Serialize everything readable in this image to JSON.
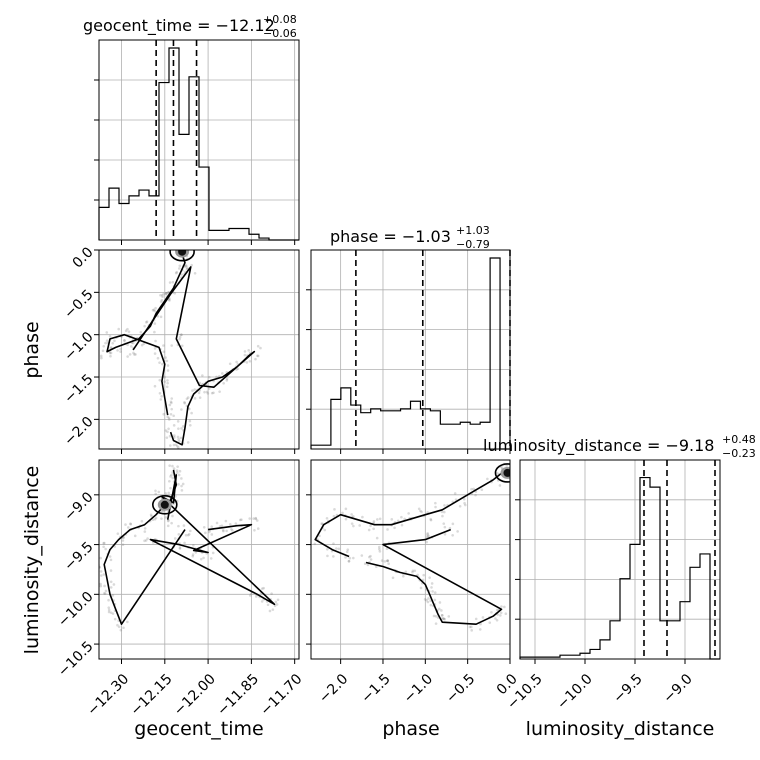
{
  "chart_data": {
    "type": "corner",
    "parameters": [
      {
        "name": "geocent_time",
        "xlabel": "geocent_time",
        "ylabel": "",
        "range": [
          -12.378,
          -11.685
        ],
        "ticks": [
          -12.3,
          -12.15,
          -12.0,
          -11.85,
          -11.7
        ],
        "tick_labels": [
          "−12.30",
          "−12.15",
          "−12.00",
          "−11.85",
          "−11.70"
        ],
        "title": {
          "prefix": "geocent_time = −12.12",
          "plus": "+0.08",
          "minus": "−0.06"
        },
        "median": -12.12,
        "quantiles": [
          -12.18,
          -12.12,
          -12.04
        ],
        "histogram": [
          0.17,
          0.27,
          0.19,
          0.23,
          0.26,
          0.23,
          0.82,
          1.0,
          0.55,
          0.85,
          0.38,
          0.05,
          0.05,
          0.06,
          0.06,
          0.03,
          0.01,
          0.0,
          0.0,
          0.0
        ]
      },
      {
        "name": "phase",
        "xlabel": "phase",
        "ylabel": "phase",
        "range": [
          -2.35,
          0.0
        ],
        "ticks": [
          -2.0,
          -1.5,
          -1.0,
          -0.5,
          0.0
        ],
        "tick_labels": [
          "−2.0",
          "−1.5",
          "−1.0",
          "−0.5",
          "0.0"
        ],
        "title": {
          "prefix": "phase = −1.03",
          "plus": "+1.03",
          "minus": "−0.79"
        },
        "median": -1.03,
        "quantiles": [
          -1.82,
          -1.03,
          0.0
        ],
        "histogram": [
          0.02,
          0.02,
          0.26,
          0.32,
          0.23,
          0.19,
          0.21,
          0.2,
          0.2,
          0.21,
          0.25,
          0.21,
          0.2,
          0.13,
          0.13,
          0.14,
          0.13,
          0.14,
          1.0,
          0.0
        ]
      },
      {
        "name": "luminosity_distance",
        "xlabel": "luminosity_distance",
        "ylabel": "luminosity_distance",
        "range": [
          -10.65,
          -8.65
        ],
        "ticks": [
          -10.5,
          -10.0,
          -9.5,
          -9.0
        ],
        "tick_labels": [
          "−10.5",
          "−10.0",
          "−9.5",
          "−9.0"
        ],
        "title": {
          "prefix": "luminosity_distance = −9.18",
          "plus": "+0.48",
          "minus": "−0.23"
        },
        "median": -9.18,
        "quantiles": [
          -9.41,
          -9.18,
          -8.7
        ],
        "histogram": [
          0.01,
          0.01,
          0.01,
          0.01,
          0.02,
          0.02,
          0.03,
          0.05,
          0.1,
          0.2,
          0.42,
          0.6,
          0.95,
          0.9,
          0.2,
          0.2,
          0.3,
          0.48,
          0.55,
          0.0
        ]
      }
    ],
    "contours": [
      {
        "x": "geocent_time",
        "y": "phase",
        "peak": [
          -12.09,
          -0.02
        ],
        "samples": [
          [
            -12.09,
            -0.05
          ],
          [
            -12.08,
            -0.15
          ],
          [
            -12.1,
            -0.3
          ],
          [
            -12.12,
            -0.45
          ],
          [
            -12.15,
            -0.6
          ],
          [
            -12.18,
            -0.75
          ],
          [
            -12.2,
            -0.9
          ],
          [
            -12.24,
            -1.05
          ],
          [
            -12.28,
            -1.1
          ],
          [
            -12.32,
            -1.15
          ],
          [
            -12.35,
            -1.2
          ],
          [
            -12.34,
            -1.05
          ],
          [
            -12.29,
            -1.0
          ],
          [
            -12.17,
            -1.15
          ],
          [
            -12.15,
            -1.35
          ],
          [
            -12.16,
            -1.55
          ],
          [
            -12.15,
            -1.75
          ],
          [
            -12.14,
            -1.95
          ],
          [
            -12.13,
            -2.15
          ],
          [
            -12.12,
            -2.25
          ],
          [
            -12.09,
            -2.3
          ],
          [
            -12.08,
            -2.1
          ],
          [
            -12.07,
            -1.85
          ],
          [
            -12.05,
            -1.7
          ],
          [
            -12.0,
            -1.55
          ],
          [
            -11.95,
            -1.5
          ],
          [
            -11.9,
            -1.38
          ],
          [
            -11.86,
            -1.25
          ],
          [
            -11.84,
            -1.2
          ],
          [
            -11.98,
            -1.62
          ],
          [
            -12.03,
            -1.6
          ],
          [
            -12.11,
            -1.05
          ],
          [
            -12.06,
            -0.2
          ],
          [
            -12.13,
            -0.52
          ],
          [
            -12.26,
            -1.18
          ]
        ]
      },
      {
        "x": "geocent_time",
        "y": "luminosity_distance",
        "peak": [
          -12.15,
          -9.1
        ],
        "samples": [
          [
            -12.12,
            -8.75
          ],
          [
            -12.11,
            -8.9
          ],
          [
            -12.13,
            -9.05
          ],
          [
            -12.15,
            -9.1
          ],
          [
            -12.18,
            -9.2
          ],
          [
            -12.22,
            -9.3
          ],
          [
            -12.27,
            -9.35
          ],
          [
            -12.31,
            -9.45
          ],
          [
            -12.34,
            -9.55
          ],
          [
            -12.36,
            -9.7
          ],
          [
            -12.35,
            -9.85
          ],
          [
            -12.34,
            -10.0
          ],
          [
            -12.32,
            -10.15
          ],
          [
            -12.3,
            -10.3
          ],
          [
            -12.08,
            -9.35
          ],
          [
            -12.0,
            -9.35
          ],
          [
            -11.95,
            -9.33
          ],
          [
            -11.9,
            -9.31
          ],
          [
            -11.85,
            -9.3
          ],
          [
            -12.05,
            -9.56
          ],
          [
            -12.0,
            -9.58
          ],
          [
            -12.1,
            -9.5
          ],
          [
            -12.2,
            -9.45
          ],
          [
            -11.83,
            -10.0
          ],
          [
            -11.8,
            -10.05
          ],
          [
            -11.77,
            -10.1
          ],
          [
            -12.16,
            -9.02
          ],
          [
            -12.12,
            -9.08
          ],
          [
            -12.11,
            -8.8
          ],
          [
            -12.14,
            -9.25
          ]
        ]
      },
      {
        "x": "phase",
        "y": "luminosity_distance",
        "peak": [
          -0.03,
          -8.78
        ],
        "samples": [
          [
            -0.05,
            -8.75
          ],
          [
            -0.2,
            -8.85
          ],
          [
            -0.4,
            -8.95
          ],
          [
            -0.6,
            -9.05
          ],
          [
            -0.8,
            -9.15
          ],
          [
            -1.0,
            -9.2
          ],
          [
            -1.2,
            -9.25
          ],
          [
            -1.4,
            -9.3
          ],
          [
            -1.6,
            -9.3
          ],
          [
            -1.8,
            -9.25
          ],
          [
            -2.0,
            -9.2
          ],
          [
            -2.2,
            -9.3
          ],
          [
            -2.3,
            -9.45
          ],
          [
            -2.1,
            -9.55
          ],
          [
            -1.9,
            -9.62
          ],
          [
            -1.7,
            -9.68
          ],
          [
            -1.5,
            -9.72
          ],
          [
            -1.3,
            -9.78
          ],
          [
            -1.1,
            -9.82
          ],
          [
            -1.0,
            -9.9
          ],
          [
            -0.95,
            -10.0
          ],
          [
            -0.9,
            -10.1
          ],
          [
            -0.85,
            -10.2
          ],
          [
            -0.8,
            -10.28
          ],
          [
            -0.4,
            -10.3
          ],
          [
            -0.2,
            -10.22
          ],
          [
            -0.1,
            -10.15
          ],
          [
            -1.5,
            -9.5
          ],
          [
            -1.0,
            -9.45
          ],
          [
            -0.7,
            -9.35
          ]
        ]
      }
    ]
  }
}
